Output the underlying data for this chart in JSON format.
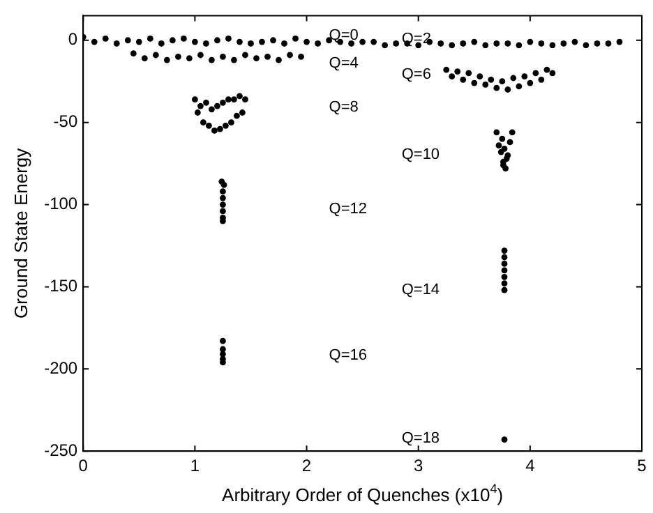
{
  "chart_data": {
    "type": "scatter",
    "xlabel": "Arbitrary Order of Quenches (x10$^{4}$)",
    "ylabel": "Ground State Energy",
    "xlim": [
      0,
      5
    ],
    "xticks": [
      0,
      1,
      2,
      3,
      4,
      5
    ],
    "ylim": [
      -250,
      15
    ],
    "yticks": [
      -250,
      -200,
      -150,
      -100,
      -50,
      0
    ],
    "grid": false,
    "legend": false,
    "marker": "circle",
    "series": [
      {
        "color": "#000000",
        "x": [
          0,
          0.1,
          0.2,
          0.3,
          0.4,
          0.5,
          0.6,
          0.7,
          0.8,
          0.9,
          1,
          1.1,
          1.2,
          1.3,
          1.4,
          1.5,
          1.6,
          1.7,
          1.8,
          1.9,
          2,
          2.1,
          2.2,
          2.3,
          2.4,
          2.5
        ],
        "values": [
          2,
          -1,
          1,
          -2,
          0,
          -1,
          1,
          -2,
          0,
          1,
          -1,
          -2,
          0,
          1,
          -1,
          -2,
          -1,
          0,
          -2,
          1,
          -1,
          -2,
          0,
          -1,
          -2,
          -1
        ]
      },
      {
        "color": "#000000",
        "x": [
          0.45,
          0.55,
          0.65,
          0.75,
          0.85,
          0.95,
          1.05,
          1.15,
          1.25,
          1.35,
          1.45,
          1.55,
          1.65,
          1.75,
          1.85,
          1.95
        ],
        "values": [
          -8,
          -11,
          -9,
          -12,
          -10,
          -11,
          -9,
          -12,
          -10,
          -12,
          -9,
          -11,
          -10,
          -12,
          -9,
          -10
        ]
      },
      {
        "color": "#000000",
        "x": [
          2.6,
          2.7,
          2.8,
          2.9,
          3,
          3.1,
          3.2,
          3.3,
          3.4,
          3.5,
          3.6,
          3.7,
          3.8,
          3.9,
          4,
          4.1,
          4.2,
          4.3,
          4.4,
          4.5,
          4.6,
          4.7,
          4.8
        ],
        "values": [
          -1,
          -3,
          -2,
          -2,
          -3,
          -1,
          -2,
          -3,
          -2,
          -1,
          -3,
          -2,
          -2,
          -3,
          -1,
          -2,
          -3,
          -2,
          -1,
          -3,
          -2,
          -2,
          -1
        ]
      },
      {
        "color": "#000000",
        "x": [
          3.25,
          3.3,
          3.35,
          3.4,
          3.45,
          3.5,
          3.55,
          3.6,
          3.65,
          3.7,
          3.75,
          3.8,
          3.85,
          3.9,
          3.95,
          4,
          4.05,
          4.1,
          4.15,
          4.2
        ],
        "values": [
          -18,
          -22,
          -19,
          -24,
          -20,
          -26,
          -22,
          -27,
          -24,
          -29,
          -25,
          -30,
          -23,
          -28,
          -22,
          -26,
          -20,
          -24,
          -18,
          -20
        ]
      },
      {
        "color": "#000000",
        "x": [
          1,
          1.025,
          1.05,
          1.075,
          1.1,
          1.125,
          1.15,
          1.175,
          1.2,
          1.225,
          1.25,
          1.275,
          1.3,
          1.325,
          1.35,
          1.375,
          1.4,
          1.425,
          1.45
        ],
        "values": [
          -36,
          -44,
          -40,
          -50,
          -38,
          -52,
          -42,
          -55,
          -40,
          -54,
          -38,
          -52,
          -36,
          -50,
          -36,
          -46,
          -34,
          -44,
          -36
        ]
      },
      {
        "color": "#000000",
        "x": [
          3.7,
          3.72,
          3.74,
          3.76,
          3.78,
          3.8,
          3.82,
          3.84,
          3.75,
          3.77,
          3.79,
          3.76
        ],
        "values": [
          -56,
          -64,
          -68,
          -74,
          -78,
          -70,
          -62,
          -56,
          -60,
          -66,
          -72,
          -76
        ]
      },
      {
        "color": "#000000",
        "x": [
          1.24,
          1.26,
          1.25,
          1.25,
          1.25,
          1.25,
          1.25,
          1.25
        ],
        "values": [
          -86,
          -88,
          -92,
          -96,
          -100,
          -104,
          -108,
          -110
        ]
      },
      {
        "color": "#000000",
        "x": [
          3.77,
          3.77,
          3.77,
          3.77,
          3.77,
          3.77,
          3.77
        ],
        "values": [
          -128,
          -132,
          -136,
          -140,
          -144,
          -148,
          -152
        ]
      },
      {
        "color": "#000000",
        "x": [
          1.25,
          1.25,
          1.25,
          1.25,
          1.25
        ],
        "values": [
          -183,
          -188,
          -191,
          -194,
          -196
        ]
      },
      {
        "color": "#000000",
        "x": [
          3.77
        ],
        "values": [
          -243
        ]
      }
    ],
    "annotations": [
      "Q=0",
      "Q=4",
      "Q=2",
      "Q=6",
      "Q=8",
      "Q=10",
      "Q=12",
      "Q=14",
      "Q=16",
      "Q=18"
    ]
  }
}
